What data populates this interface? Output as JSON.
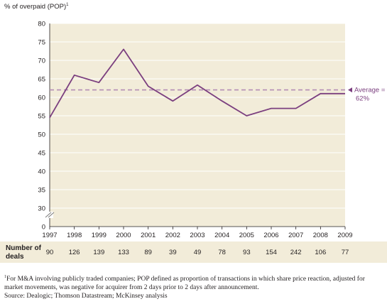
{
  "chart_data": {
    "type": "line",
    "ylabel": "% of overpaid (POP)",
    "ylabel_marker": "1",
    "x": [
      "1997",
      "1998",
      "1999",
      "2000",
      "2001",
      "2002",
      "2003",
      "2004",
      "2005",
      "2006",
      "2007",
      "2008",
      "2009"
    ],
    "series": [
      {
        "values": [
          54.5,
          66,
          64,
          73,
          63,
          59,
          63.3,
          59,
          55,
          57,
          57,
          61,
          61
        ],
        "color": "#7b3f7f"
      }
    ],
    "yticks": [
      0,
      30,
      35,
      40,
      45,
      50,
      55,
      60,
      65,
      70,
      75,
      80
    ],
    "ylim": [
      25,
      80
    ],
    "axis_break": true,
    "reference_line": {
      "value": 62,
      "label_line1": "Average =",
      "label_line2": "62%",
      "color": "#b48db4"
    },
    "plot_background": "#f2ecd9",
    "grid": "horizontal"
  },
  "deals": {
    "label_line1": "Number of",
    "label_line2": "deals",
    "values": [
      "90",
      "126",
      "139",
      "133",
      "89",
      "39",
      "49",
      "78",
      "93",
      "154",
      "242",
      "106",
      "77"
    ]
  },
  "footnote": {
    "marker": "1",
    "text": "For M&A involving publicly traded companies; POP defined as proportion of transactions in which share price reaction, adjusted for market movements, was negative for acquirer from 2 days prior to 2 days after announcement."
  },
  "source": "Source: Dealogic; Thomson Datastream; McKinsey analysis"
}
